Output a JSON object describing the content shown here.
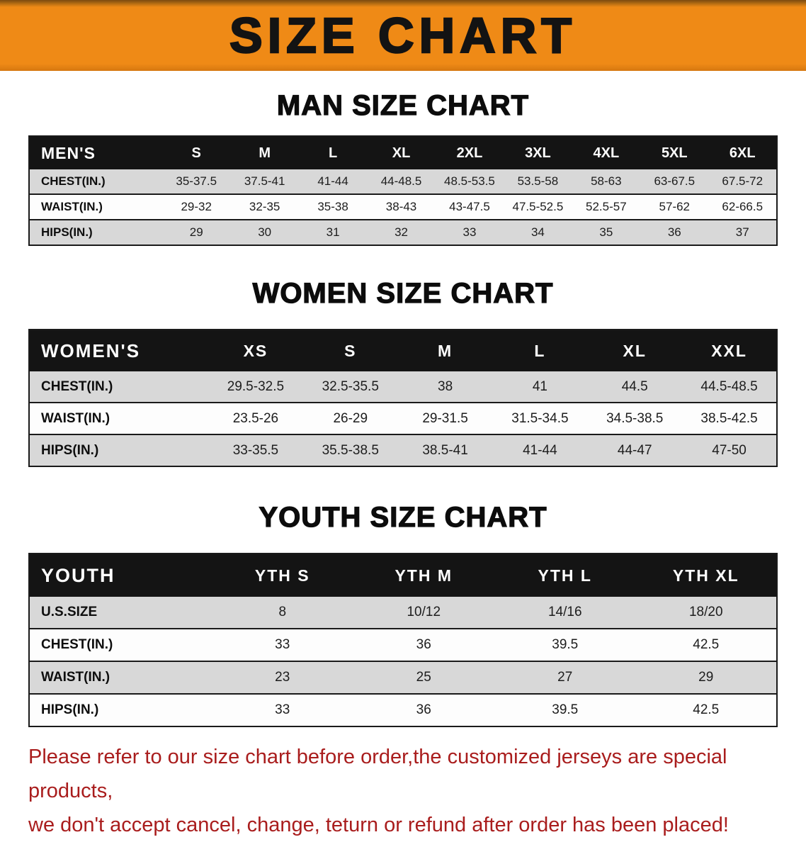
{
  "banner": {
    "title": "SIZE CHART"
  },
  "sections": [
    {
      "heading": "MAN SIZE CHART",
      "table": {
        "first_col": "MEN'S",
        "columns": [
          "S",
          "M",
          "L",
          "XL",
          "2XL",
          "3XL",
          "4XL",
          "5XL",
          "6XL"
        ],
        "rows": [
          {
            "label": "CHEST(IN.)",
            "values": [
              "35-37.5",
              "37.5-41",
              "41-44",
              "44-48.5",
              "48.5-53.5",
              "53.5-58",
              "58-63",
              "63-67.5",
              "67.5-72"
            ]
          },
          {
            "label": "WAIST(IN.)",
            "values": [
              "29-32",
              "32-35",
              "35-38",
              "38-43",
              "43-47.5",
              "47.5-52.5",
              "52.5-57",
              "57-62",
              "62-66.5"
            ]
          },
          {
            "label": "HIPS(IN.)",
            "values": [
              "29",
              "30",
              "31",
              "32",
              "33",
              "34",
              "35",
              "36",
              "37"
            ]
          }
        ]
      }
    },
    {
      "heading": "WOMEN SIZE CHART",
      "table": {
        "first_col": "WOMEN'S",
        "columns": [
          "XS",
          "S",
          "M",
          "L",
          "XL",
          "XXL"
        ],
        "rows": [
          {
            "label": "CHEST(IN.)",
            "values": [
              "29.5-32.5",
              "32.5-35.5",
              "38",
              "41",
              "44.5",
              "44.5-48.5"
            ]
          },
          {
            "label": "WAIST(IN.)",
            "values": [
              "23.5-26",
              "26-29",
              "29-31.5",
              "31.5-34.5",
              "34.5-38.5",
              "38.5-42.5"
            ]
          },
          {
            "label": "HIPS(IN.)",
            "values": [
              "33-35.5",
              "35.5-38.5",
              "38.5-41",
              "41-44",
              "44-47",
              "47-50"
            ]
          }
        ]
      }
    },
    {
      "heading": "YOUTH SIZE CHART",
      "table": {
        "first_col": "YOUTH",
        "columns": [
          "YTH S",
          "YTH M",
          "YTH L",
          "YTH XL"
        ],
        "rows": [
          {
            "label": "U.S.SIZE",
            "values": [
              "8",
              "10/12",
              "14/16",
              "18/20"
            ]
          },
          {
            "label": "CHEST(IN.)",
            "values": [
              "33",
              "36",
              "39.5",
              "42.5"
            ]
          },
          {
            "label": "WAIST(IN.)",
            "values": [
              "23",
              "25",
              "27",
              "29"
            ]
          },
          {
            "label": "HIPS(IN.)",
            "values": [
              "33",
              "36",
              "39.5",
              "42.5"
            ]
          }
        ]
      }
    }
  ],
  "disclaimer": {
    "lines": [
      "Please refer to our size chart before order,the customized jerseys are special products,",
      "we don't accept cancel, change, teturn or refund after order has been placed!"
    ]
  },
  "colors": {
    "banner_bg": "#ef8a16",
    "table_header_bg": "#141414",
    "row_shaded": "#d8d8d8",
    "table_line": "#1a1a1a",
    "disclaimer_text": "#a91d1d"
  }
}
